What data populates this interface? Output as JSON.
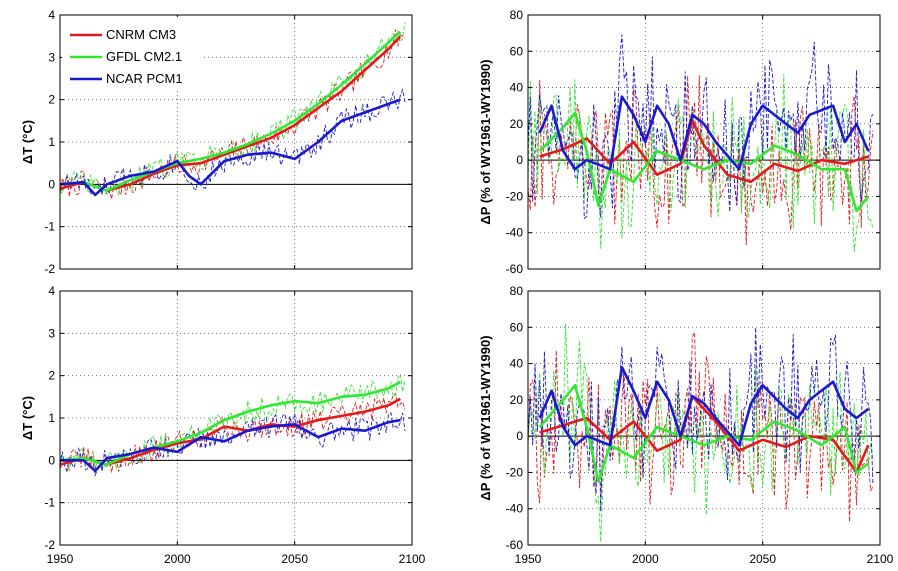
{
  "chart_data": [
    {
      "type": "line",
      "panel": "top-left",
      "ylabel": "ΔT (°C)",
      "xlim": [
        1950,
        2100
      ],
      "ylim": [
        -2,
        4
      ],
      "xticks": [
        1950,
        2000,
        2050,
        2100
      ],
      "yticks": [
        -2,
        -1,
        0,
        1,
        2,
        3,
        4
      ],
      "grid": true,
      "legend": "top-left",
      "series": [
        {
          "name": "CNRM CM3",
          "color": "#e31a1c",
          "x": [
            1950,
            1960,
            1970,
            1980,
            1990,
            2000,
            2010,
            2020,
            2030,
            2040,
            2050,
            2060,
            2070,
            2080,
            2090,
            2095
          ],
          "y": [
            -0.1,
            0.05,
            -0.15,
            0.0,
            0.25,
            0.45,
            0.5,
            0.7,
            0.9,
            1.1,
            1.4,
            1.8,
            2.2,
            2.7,
            3.2,
            3.5
          ]
        },
        {
          "name": "GFDL CM2.1",
          "color": "#33e633",
          "x": [
            1950,
            1960,
            1970,
            1980,
            1990,
            2000,
            2010,
            2020,
            2030,
            2040,
            2050,
            2060,
            2070,
            2080,
            2090,
            2095
          ],
          "y": [
            0.0,
            0.05,
            -0.15,
            0.1,
            0.3,
            0.5,
            0.6,
            0.75,
            0.95,
            1.2,
            1.5,
            1.9,
            2.35,
            2.85,
            3.35,
            3.6
          ]
        },
        {
          "name": "NCAR PCM1",
          "color": "#1a1acc",
          "x": [
            1950,
            1960,
            1965,
            1970,
            1980,
            1990,
            2000,
            2005,
            2010,
            2020,
            2030,
            2040,
            2050,
            2060,
            2070,
            2080,
            2090,
            2095
          ],
          "y": [
            0.0,
            0.05,
            -0.25,
            0.0,
            0.2,
            0.3,
            0.55,
            0.2,
            0.0,
            0.55,
            0.7,
            0.75,
            0.6,
            1.0,
            1.5,
            1.7,
            1.9,
            2.0
          ]
        }
      ]
    },
    {
      "type": "line",
      "panel": "top-right",
      "ylabel": "ΔP (% of WY1961-WY1990)",
      "xlim": [
        1950,
        2100
      ],
      "ylim": [
        -60,
        80
      ],
      "xticks": [
        1950,
        2000,
        2050,
        2100
      ],
      "yticks": [
        -60,
        -40,
        -20,
        0,
        20,
        40,
        60,
        80
      ],
      "grid": true,
      "series": [
        {
          "name": "CNRM CM3",
          "color": "#e31a1c",
          "x": [
            1955,
            1965,
            1975,
            1985,
            1995,
            2005,
            2015,
            2020,
            2025,
            2035,
            2045,
            2055,
            2065,
            2075,
            2085,
            2095
          ],
          "y": [
            2,
            6,
            12,
            -2,
            10,
            -8,
            -2,
            22,
            8,
            -8,
            -12,
            -2,
            -6,
            0,
            -2,
            2
          ]
        },
        {
          "name": "GFDL CM2.1",
          "color": "#33e633",
          "x": [
            1955,
            1965,
            1970,
            1975,
            1980,
            1985,
            1995,
            2005,
            2015,
            2025,
            2035,
            2045,
            2055,
            2065,
            2075,
            2085,
            2090,
            2095
          ],
          "y": [
            5,
            18,
            26,
            5,
            -25,
            -5,
            -12,
            5,
            0,
            -5,
            0,
            -2,
            8,
            3,
            -5,
            -5,
            -28,
            -20
          ]
        },
        {
          "name": "NCAR PCM1",
          "color": "#1a1acc",
          "x": [
            1955,
            1960,
            1965,
            1970,
            1975,
            1985,
            1990,
            1995,
            2000,
            2005,
            2010,
            2015,
            2020,
            2025,
            2030,
            2040,
            2045,
            2050,
            2060,
            2065,
            2070,
            2080,
            2085,
            2090,
            2095
          ],
          "y": [
            15,
            30,
            5,
            -5,
            0,
            -5,
            35,
            25,
            10,
            30,
            20,
            0,
            25,
            20,
            10,
            -5,
            20,
            30,
            20,
            15,
            25,
            30,
            10,
            20,
            5
          ]
        }
      ]
    },
    {
      "type": "line",
      "panel": "bottom-left",
      "ylabel": "ΔT (°C)",
      "xlim": [
        1950,
        2100
      ],
      "ylim": [
        -2,
        4
      ],
      "xticks": [
        1950,
        2000,
        2050,
        2100
      ],
      "yticks": [
        -2,
        -1,
        0,
        1,
        2,
        3,
        4
      ],
      "grid": true,
      "series": [
        {
          "name": "CNRM CM3",
          "color": "#e31a1c",
          "x": [
            1950,
            1960,
            1970,
            1980,
            1990,
            2000,
            2010,
            2020,
            2030,
            2040,
            2050,
            2060,
            2070,
            2080,
            2090,
            2095
          ],
          "y": [
            -0.1,
            0.05,
            -0.1,
            0.05,
            0.25,
            0.4,
            0.5,
            0.8,
            0.7,
            0.85,
            0.8,
            0.95,
            1.05,
            1.15,
            1.3,
            1.45
          ]
        },
        {
          "name": "GFDL CM2.1",
          "color": "#33e633",
          "x": [
            1950,
            1960,
            1970,
            1980,
            1990,
            2000,
            2010,
            2020,
            2030,
            2040,
            2050,
            2060,
            2070,
            2080,
            2090,
            2095
          ],
          "y": [
            0.0,
            0.05,
            -0.1,
            0.15,
            0.3,
            0.45,
            0.65,
            0.95,
            1.15,
            1.3,
            1.4,
            1.35,
            1.5,
            1.55,
            1.7,
            1.85
          ]
        },
        {
          "name": "NCAR PCM1",
          "color": "#1a1acc",
          "x": [
            1950,
            1960,
            1965,
            1970,
            1980,
            1990,
            2000,
            2010,
            2020,
            2030,
            2040,
            2050,
            2060,
            2070,
            2080,
            2090,
            2095
          ],
          "y": [
            0.0,
            0.0,
            -0.25,
            0.05,
            0.15,
            0.3,
            0.2,
            0.55,
            0.45,
            0.7,
            0.8,
            0.85,
            0.55,
            0.75,
            0.7,
            0.9,
            0.95
          ]
        }
      ]
    },
    {
      "type": "line",
      "panel": "bottom-right",
      "ylabel": "ΔP (% of WY1961-WY1990)",
      "xlim": [
        1950,
        2100
      ],
      "ylim": [
        -60,
        80
      ],
      "xticks": [
        1950,
        2000,
        2050,
        2100
      ],
      "yticks": [
        -60,
        -40,
        -20,
        0,
        20,
        40,
        60,
        80
      ],
      "grid": true,
      "series": [
        {
          "name": "CNRM CM3",
          "color": "#e31a1c",
          "x": [
            1955,
            1965,
            1975,
            1985,
            1995,
            2005,
            2015,
            2020,
            2030,
            2040,
            2050,
            2060,
            2070,
            2080,
            2090,
            2095
          ],
          "y": [
            2,
            6,
            10,
            -2,
            8,
            -8,
            -2,
            22,
            8,
            -8,
            -2,
            -6,
            0,
            -2,
            -20,
            -5
          ]
        },
        {
          "name": "GFDL CM2.1",
          "color": "#33e633",
          "x": [
            1955,
            1965,
            1970,
            1975,
            1980,
            1985,
            1995,
            2005,
            2015,
            2025,
            2035,
            2045,
            2055,
            2065,
            2075,
            2085,
            2090,
            2095
          ],
          "y": [
            5,
            20,
            28,
            5,
            -25,
            -5,
            -12,
            5,
            0,
            -5,
            0,
            -2,
            8,
            3,
            -5,
            5,
            -20,
            -15
          ]
        },
        {
          "name": "NCAR PCM1",
          "color": "#1a1acc",
          "x": [
            1955,
            1960,
            1965,
            1970,
            1975,
            1985,
            1990,
            1995,
            2000,
            2005,
            2010,
            2015,
            2020,
            2025,
            2030,
            2040,
            2045,
            2050,
            2060,
            2065,
            2070,
            2080,
            2085,
            2090,
            2095
          ],
          "y": [
            10,
            25,
            5,
            -5,
            0,
            -5,
            38,
            25,
            10,
            30,
            20,
            0,
            22,
            18,
            10,
            -5,
            18,
            28,
            15,
            10,
            20,
            30,
            15,
            10,
            15
          ]
        }
      ]
    }
  ]
}
